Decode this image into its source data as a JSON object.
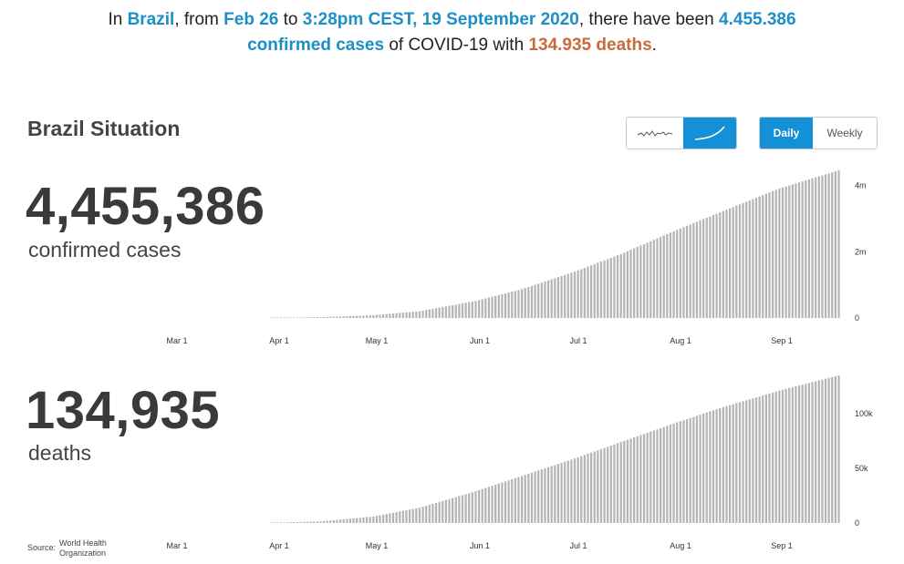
{
  "summary": {
    "t1": "In ",
    "country": "Brazil",
    "t2": ", from ",
    "start": "Feb 26",
    "t3": " to ",
    "end": "3:28pm CEST, 19 September 2020",
    "t4": ", there have been ",
    "cases": "4.455.386",
    "cases_label": "confirmed cases",
    "t5": " of COVID-19 with ",
    "deaths": "134.935 deaths",
    "t6": "."
  },
  "section_title": "Brazil Situation",
  "view_toggle": {
    "options": [
      "daily-sparkline-icon",
      "cumulative-curve-icon"
    ],
    "selected": "cumulative-curve-icon"
  },
  "period_toggle": {
    "daily": "Daily",
    "weekly": "Weekly",
    "selected": "Daily"
  },
  "cases_panel": {
    "value": "4,455,386",
    "label": "confirmed cases"
  },
  "deaths_panel": {
    "value": "134,935",
    "label": "deaths"
  },
  "source": {
    "label": "Source:",
    "name_line1": "World Health",
    "name_line2": "Organization"
  },
  "colors": {
    "accent": "#1490d6",
    "highlight_blue": "#1c8fc7",
    "highlight_orange": "#c96a3a",
    "bar": "#b5b5b5"
  },
  "chart_data": [
    {
      "type": "bar",
      "title": "",
      "series": [
        {
          "name": "confirmed cases",
          "start_date": "2020-02-26",
          "end_date": "2020-09-19",
          "values_weekly_sample": [
            {
              "x": "2020-02-26",
              "y": 1
            },
            {
              "x": "2020-03-15",
              "y": 200
            },
            {
              "x": "2020-04-01",
              "y": 5700
            },
            {
              "x": "2020-04-15",
              "y": 25000
            },
            {
              "x": "2020-05-01",
              "y": 85000
            },
            {
              "x": "2020-05-15",
              "y": 203000
            },
            {
              "x": "2020-06-01",
              "y": 515000
            },
            {
              "x": "2020-06-15",
              "y": 870000
            },
            {
              "x": "2020-07-01",
              "y": 1400000
            },
            {
              "x": "2020-07-15",
              "y": 1930000
            },
            {
              "x": "2020-08-01",
              "y": 2660000
            },
            {
              "x": "2020-08-15",
              "y": 3230000
            },
            {
              "x": "2020-09-01",
              "y": 3910000
            },
            {
              "x": "2020-09-19",
              "y": 4455386
            }
          ]
        }
      ],
      "x_tick_labels": [
        "Mar 1",
        "Apr 1",
        "May 1",
        "Jun 1",
        "Jul 1",
        "Aug 1",
        "Sep 1"
      ],
      "y_tick_labels": [
        "0",
        "2m",
        "4m"
      ],
      "ylim": [
        0,
        4455386
      ]
    },
    {
      "type": "bar",
      "title": "",
      "series": [
        {
          "name": "deaths",
          "start_date": "2020-02-26",
          "end_date": "2020-09-19",
          "values_weekly_sample": [
            {
              "x": "2020-02-26",
              "y": 0
            },
            {
              "x": "2020-03-15",
              "y": 0
            },
            {
              "x": "2020-04-01",
              "y": 200
            },
            {
              "x": "2020-04-15",
              "y": 1500
            },
            {
              "x": "2020-05-01",
              "y": 5900
            },
            {
              "x": "2020-05-15",
              "y": 14000
            },
            {
              "x": "2020-06-01",
              "y": 29000
            },
            {
              "x": "2020-06-15",
              "y": 43000
            },
            {
              "x": "2020-07-01",
              "y": 59000
            },
            {
              "x": "2020-07-15",
              "y": 74000
            },
            {
              "x": "2020-08-01",
              "y": 92000
            },
            {
              "x": "2020-08-15",
              "y": 106000
            },
            {
              "x": "2020-09-01",
              "y": 121000
            },
            {
              "x": "2020-09-19",
              "y": 134935
            }
          ]
        }
      ],
      "x_tick_labels": [
        "Mar 1",
        "Apr 1",
        "May 1",
        "Jun 1",
        "Jul 1",
        "Aug 1",
        "Sep 1"
      ],
      "y_tick_labels": [
        "0",
        "50k",
        "100k"
      ],
      "ylim": [
        0,
        134935
      ]
    }
  ]
}
